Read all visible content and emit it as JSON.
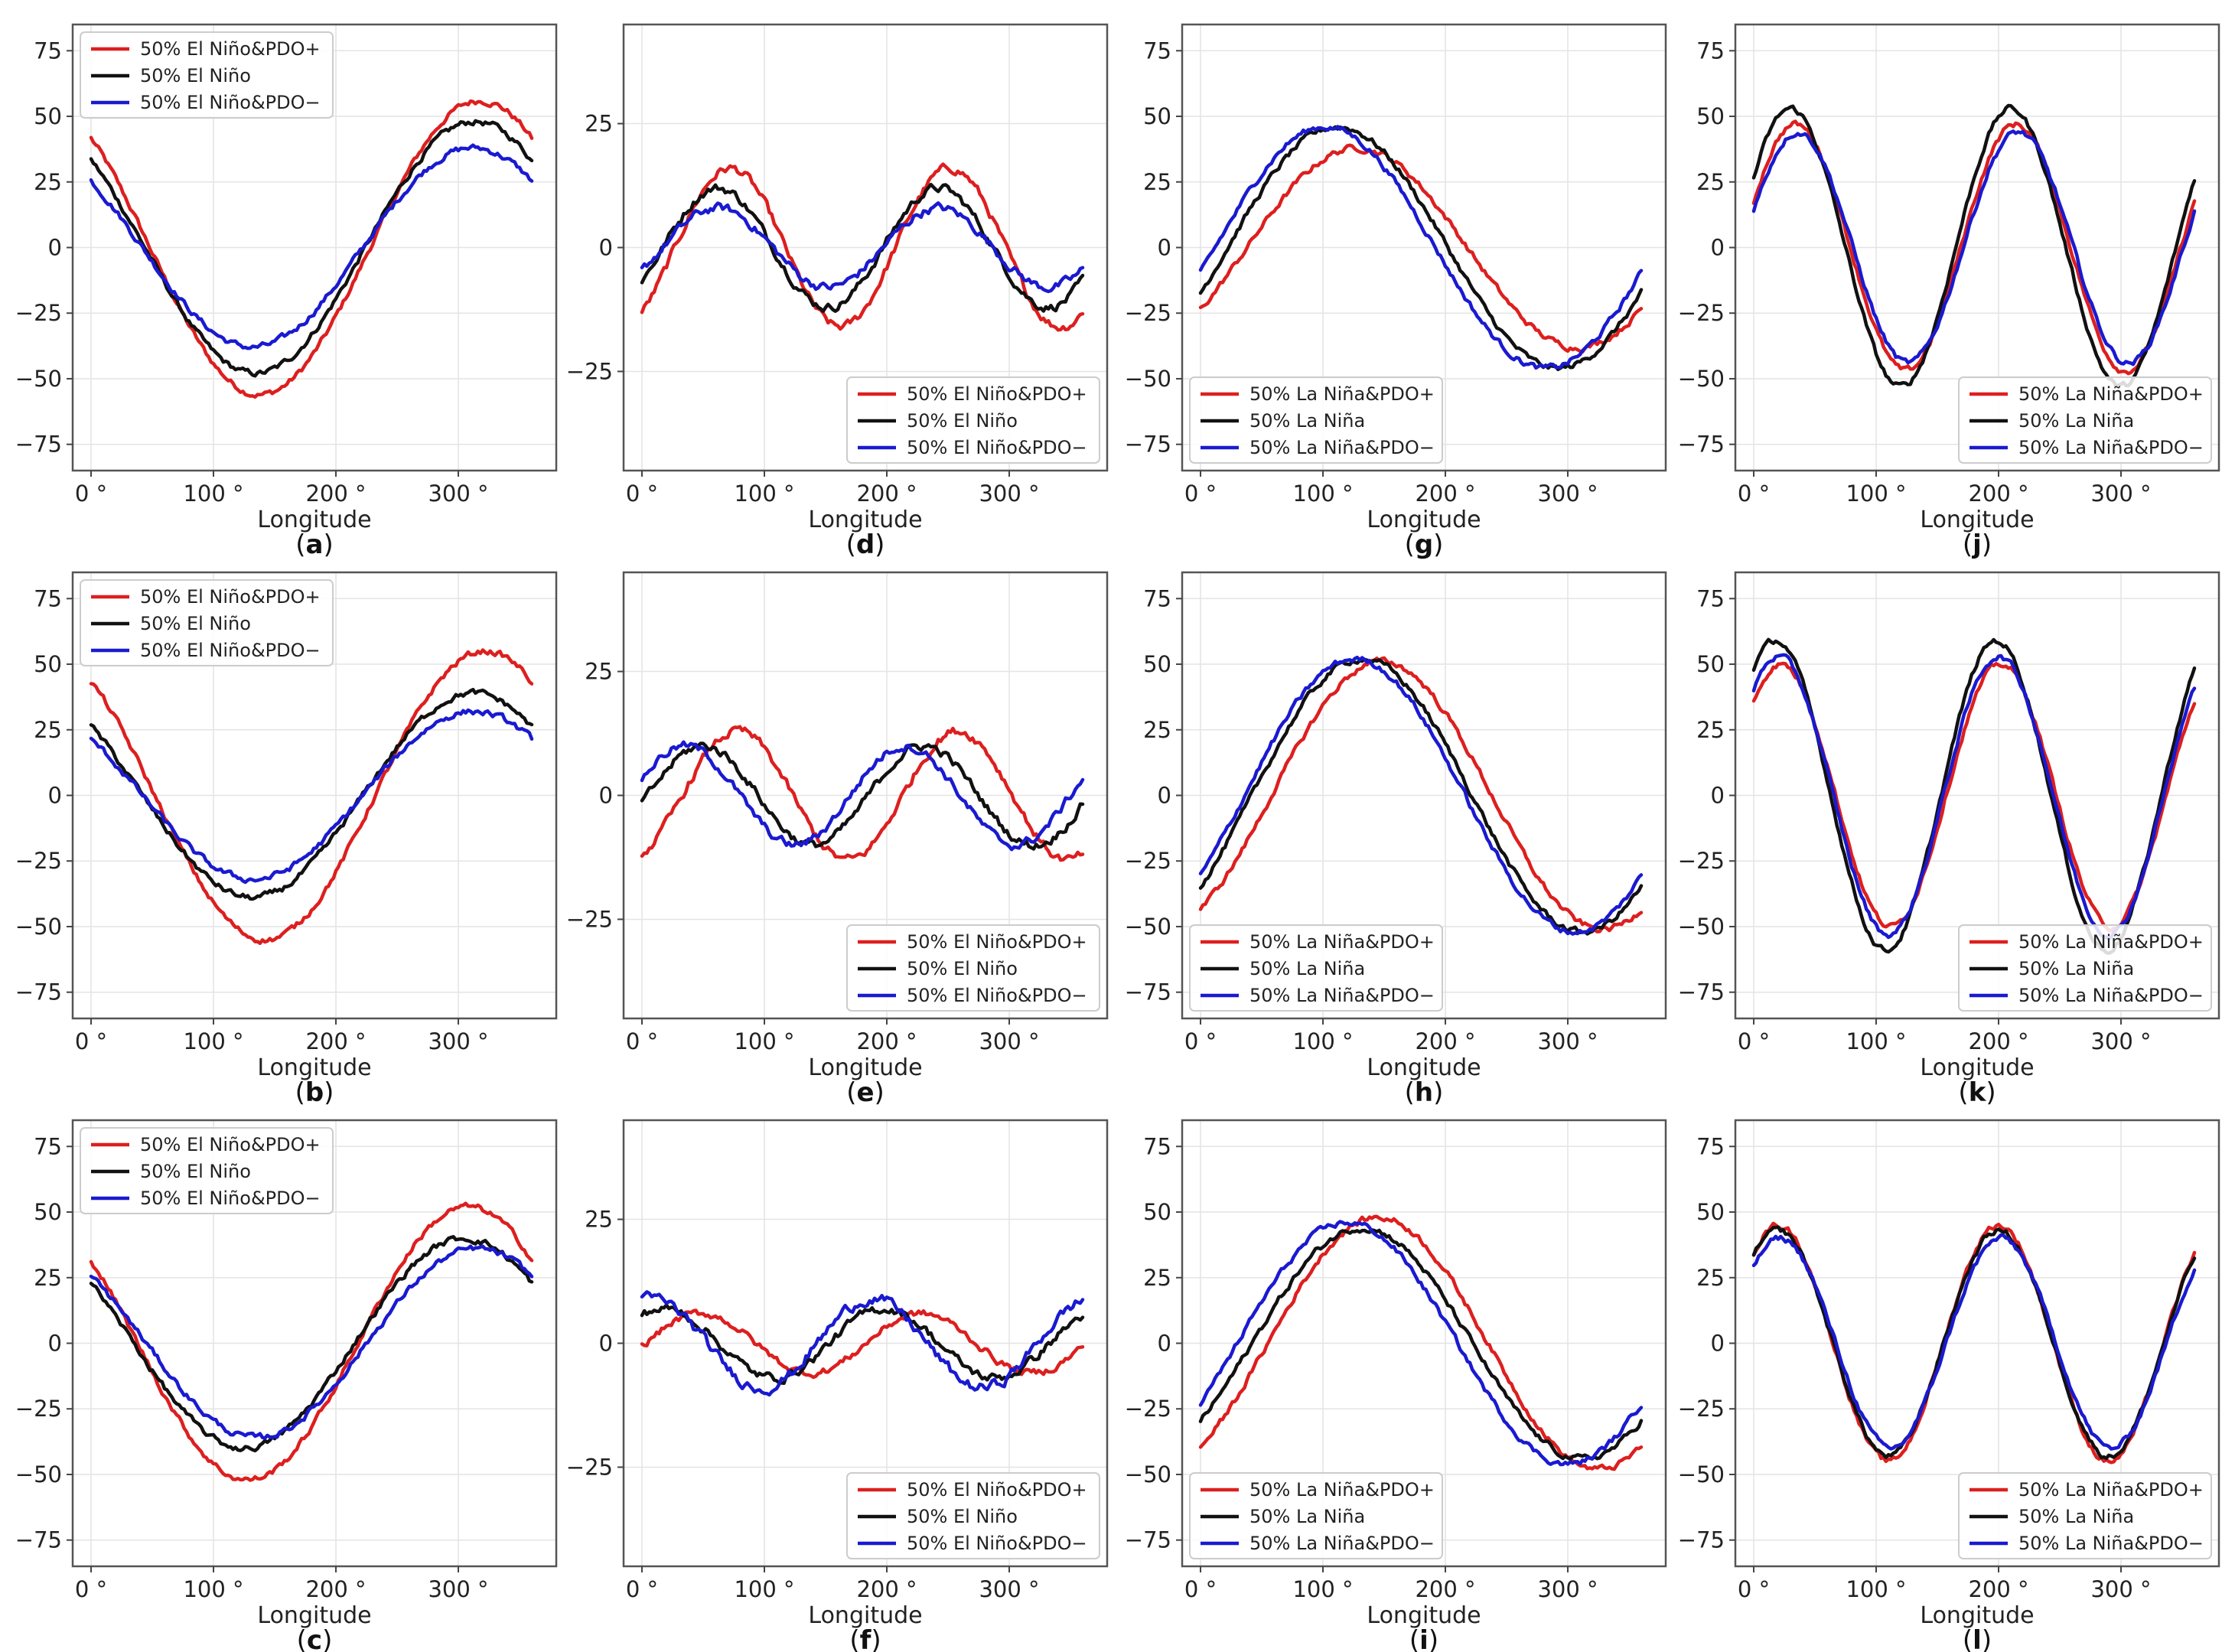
{
  "figure": {
    "xlabel": "Longitude"
  },
  "colors": {
    "pdo_plus": "#dd1f1f",
    "neutral": "#111111",
    "pdo_minus": "#1a1ad0"
  },
  "chart_data": [
    {
      "id": "a",
      "type": "line",
      "xlabel": "Longitude",
      "ylim": [
        -85,
        85
      ],
      "yticks": [
        75,
        50,
        25,
        0,
        -25,
        -50,
        -75
      ],
      "xticks": [
        "0 °",
        "100 °",
        "200 °",
        "300 °"
      ],
      "xlim": [
        -15,
        380
      ],
      "legend_loc": "upper-left",
      "wave": 1,
      "series": [
        {
          "name": "50% El Niño&PDO+",
          "color": "#dd1f1f",
          "amp": 56,
          "peak": 318,
          "offset": 0,
          "noise": 2
        },
        {
          "name": "50% El Niño",
          "color": "#111111",
          "amp": 48,
          "peak": 314,
          "offset": 0,
          "noise": 2
        },
        {
          "name": "50% El Niño&PDO−",
          "color": "#1a1ad0",
          "amp": 38,
          "peak": 312,
          "offset": 0,
          "noise": 2
        }
      ]
    },
    {
      "id": "d",
      "type": "line",
      "xlabel": "Longitude",
      "ylim": [
        -45,
        45
      ],
      "yticks": [
        25,
        0,
        -25
      ],
      "xticks": [
        "0 °",
        "100 °",
        "200 °",
        "300 °"
      ],
      "xlim": [
        -15,
        380
      ],
      "legend_loc": "lower-right",
      "wave": 2,
      "series": [
        {
          "name": "50% El Niño&PDO+",
          "color": "#dd1f1f",
          "amp": 16,
          "peak": 72,
          "offset": 0,
          "noise": 1.5
        },
        {
          "name": "50% El Niño",
          "color": "#111111",
          "amp": 12,
          "peak": 62,
          "offset": 0,
          "noise": 1.5
        },
        {
          "name": "50% El Niño&PDO−",
          "color": "#1a1ad0",
          "amp": 8,
          "peak": 62,
          "offset": 0,
          "noise": 1.5
        }
      ]
    },
    {
      "id": "g",
      "type": "line",
      "xlabel": "Longitude",
      "ylim": [
        -85,
        85
      ],
      "yticks": [
        75,
        50,
        25,
        0,
        -25,
        -50,
        -75
      ],
      "xticks": [
        "0 °",
        "100 °",
        "200 °",
        "300 °"
      ],
      "xlim": [
        -15,
        380
      ],
      "legend_loc": "lower-left",
      "wave": 1,
      "series": [
        {
          "name": "50% La Niña&PDO+",
          "color": "#dd1f1f",
          "amp": 38,
          "peak": 128,
          "offset": 0,
          "noise": 2
        },
        {
          "name": "50% La Niña",
          "color": "#111111",
          "amp": 46,
          "peak": 112,
          "offset": 0,
          "noise": 2
        },
        {
          "name": "50% La Niña&PDO−",
          "color": "#1a1ad0",
          "amp": 46,
          "peak": 102,
          "offset": 0,
          "noise": 2
        }
      ]
    },
    {
      "id": "j",
      "type": "line",
      "xlabel": "Longitude",
      "ylim": [
        -85,
        85
      ],
      "yticks": [
        75,
        50,
        25,
        0,
        -25,
        -50,
        -75
      ],
      "xticks": [
        "0 °",
        "100 °",
        "200 °",
        "300 °"
      ],
      "xlim": [
        -15,
        380
      ],
      "legend_loc": "lower-right",
      "wave": 2,
      "series": [
        {
          "name": "50% La Niña&PDO+",
          "color": "#dd1f1f",
          "amp": 47,
          "peak": 34,
          "offset": 0,
          "noise": 2
        },
        {
          "name": "50% La Niña",
          "color": "#111111",
          "amp": 53,
          "peak": 30,
          "offset": 0,
          "noise": 2
        },
        {
          "name": "50% La Niña&PDO−",
          "color": "#1a1ad0",
          "amp": 44,
          "peak": 36,
          "offset": 0,
          "noise": 2
        }
      ]
    },
    {
      "id": "b",
      "type": "line",
      "xlabel": "Longitude",
      "ylim": [
        -85,
        85
      ],
      "yticks": [
        75,
        50,
        25,
        0,
        -25,
        -50,
        -75
      ],
      "xticks": [
        "0 °",
        "100 °",
        "200 °",
        "300 °"
      ],
      "xlim": [
        -15,
        380
      ],
      "legend_loc": "upper-left",
      "wave": 1,
      "series": [
        {
          "name": "50% El Niño&PDO+",
          "color": "#dd1f1f",
          "amp": 55,
          "peak": 322,
          "offset": 0,
          "noise": 2
        },
        {
          "name": "50% El Niño",
          "color": "#111111",
          "amp": 39,
          "peak": 312,
          "offset": 0,
          "noise": 2
        },
        {
          "name": "50% El Niño&PDO−",
          "color": "#1a1ad0",
          "amp": 32,
          "peak": 312,
          "offset": 0,
          "noise": 2
        }
      ]
    },
    {
      "id": "e",
      "type": "line",
      "xlabel": "Longitude",
      "ylim": [
        -45,
        45
      ],
      "yticks": [
        25,
        0,
        -25
      ],
      "xticks": [
        "0 °",
        "100 °",
        "200 °",
        "300 °"
      ],
      "xlim": [
        -15,
        380
      ],
      "legend_loc": "lower-right",
      "wave": 2,
      "series": [
        {
          "name": "50% El Niño&PDO+",
          "color": "#dd1f1f",
          "amp": 13,
          "peak": 78,
          "offset": 0,
          "noise": 1.5
        },
        {
          "name": "50% El Niño",
          "color": "#111111",
          "amp": 10,
          "peak": 50,
          "offset": 0,
          "noise": 1.5
        },
        {
          "name": "50% El Niño&PDO−",
          "color": "#1a1ad0",
          "amp": 10,
          "peak": 35,
          "offset": 0,
          "noise": 1.5
        }
      ]
    },
    {
      "id": "h",
      "type": "line",
      "xlabel": "Longitude",
      "ylim": [
        -85,
        85
      ],
      "yticks": [
        75,
        50,
        25,
        0,
        -25,
        -50,
        -75
      ],
      "xticks": [
        "0 °",
        "100 °",
        "200 °",
        "300 °"
      ],
      "xlim": [
        -15,
        380
      ],
      "legend_loc": "lower-left",
      "wave": 1,
      "series": [
        {
          "name": "50% La Niña&PDO+",
          "color": "#dd1f1f",
          "amp": 51,
          "peak": 148,
          "offset": 0,
          "noise": 2
        },
        {
          "name": "50% La Niña",
          "color": "#111111",
          "amp": 52,
          "peak": 132,
          "offset": 0,
          "noise": 2
        },
        {
          "name": "50% La Niña&PDO−",
          "color": "#1a1ad0",
          "amp": 52,
          "peak": 126,
          "offset": 0,
          "noise": 2
        }
      ]
    },
    {
      "id": "k",
      "type": "line",
      "xlabel": "Longitude",
      "ylim": [
        -85,
        85
      ],
      "yticks": [
        75,
        50,
        25,
        0,
        -25,
        -50,
        -75
      ],
      "xticks": [
        "0 °",
        "100 °",
        "200 °",
        "300 °"
      ],
      "xlim": [
        -15,
        380
      ],
      "legend_loc": "lower-right",
      "wave": 2,
      "series": [
        {
          "name": "50% La Niña&PDO+",
          "color": "#dd1f1f",
          "amp": 50,
          "peak": 22,
          "offset": 0,
          "noise": 2
        },
        {
          "name": "50% La Niña",
          "color": "#111111",
          "amp": 59,
          "peak": 18,
          "offset": 0,
          "noise": 2
        },
        {
          "name": "50% La Niña&PDO−",
          "color": "#1a1ad0",
          "amp": 53,
          "peak": 20,
          "offset": 0,
          "noise": 2
        }
      ]
    },
    {
      "id": "c",
      "type": "line",
      "xlabel": "Longitude",
      "ylim": [
        -85,
        85
      ],
      "yticks": [
        75,
        50,
        25,
        0,
        -25,
        -50,
        -75
      ],
      "xticks": [
        "0 °",
        "100 °",
        "200 °",
        "300 °"
      ],
      "xlim": [
        -15,
        380
      ],
      "legend_loc": "upper-left",
      "wave": 1,
      "series": [
        {
          "name": "50% El Niño&PDO+",
          "color": "#dd1f1f",
          "amp": 52,
          "peak": 308,
          "offset": 0,
          "noise": 2
        },
        {
          "name": "50% El Niño",
          "color": "#111111",
          "amp": 40,
          "peak": 305,
          "offset": 0,
          "noise": 2
        },
        {
          "name": "50% El Niño&PDO−",
          "color": "#1a1ad0",
          "amp": 36,
          "peak": 315,
          "offset": 0,
          "noise": 2
        }
      ]
    },
    {
      "id": "f",
      "type": "line",
      "xlabel": "Longitude",
      "ylim": [
        -45,
        45
      ],
      "yticks": [
        25,
        0,
        -25
      ],
      "xticks": [
        "0 °",
        "100 °",
        "200 °",
        "300 °"
      ],
      "xlim": [
        -15,
        380
      ],
      "legend_loc": "lower-right",
      "wave": 2,
      "series": [
        {
          "name": "50% El Niño&PDO+",
          "color": "#dd1f1f",
          "amp": 6,
          "peak": 48,
          "offset": 0,
          "noise": 1.2
        },
        {
          "name": "50% El Niño",
          "color": "#111111",
          "amp": 7,
          "peak": 18,
          "offset": 0,
          "noise": 1.5
        },
        {
          "name": "50% El Niño&PDO−",
          "color": "#1a1ad0",
          "amp": 9,
          "peak": 8,
          "offset": 0,
          "noise": 1.8
        }
      ]
    },
    {
      "id": "i",
      "type": "line",
      "xlabel": "Longitude",
      "ylim": [
        -85,
        85
      ],
      "yticks": [
        75,
        50,
        25,
        0,
        -25,
        -50,
        -75
      ],
      "xticks": [
        "0 °",
        "100 °",
        "200 °",
        "300 °"
      ],
      "xlim": [
        -15,
        380
      ],
      "legend_loc": "lower-left",
      "wave": 1,
      "series": [
        {
          "name": "50% La Niña&PDO+",
          "color": "#dd1f1f",
          "amp": 48,
          "peak": 145,
          "offset": 0,
          "noise": 2
        },
        {
          "name": "50% La Niña",
          "color": "#111111",
          "amp": 44,
          "peak": 132,
          "offset": 0,
          "noise": 2
        },
        {
          "name": "50% La Niña&PDO−",
          "color": "#1a1ad0",
          "amp": 46,
          "peak": 120,
          "offset": 0,
          "noise": 2
        }
      ]
    },
    {
      "id": "l",
      "type": "line",
      "xlabel": "Longitude",
      "ylim": [
        -85,
        85
      ],
      "yticks": [
        75,
        50,
        25,
        0,
        -25,
        -50,
        -75
      ],
      "xticks": [
        "0 °",
        "100 °",
        "200 °",
        "300 °"
      ],
      "xlim": [
        -15,
        380
      ],
      "legend_loc": "lower-right",
      "wave": 2,
      "series": [
        {
          "name": "50% La Niña&PDO+",
          "color": "#dd1f1f",
          "amp": 45,
          "peak": 20,
          "offset": 0,
          "noise": 2
        },
        {
          "name": "50% La Niña",
          "color": "#111111",
          "amp": 43,
          "peak": 20,
          "offset": 0,
          "noise": 2
        },
        {
          "name": "50% La Niña&PDO−",
          "color": "#1a1ad0",
          "amp": 40,
          "peak": 22,
          "offset": 0,
          "noise": 2
        }
      ]
    }
  ]
}
